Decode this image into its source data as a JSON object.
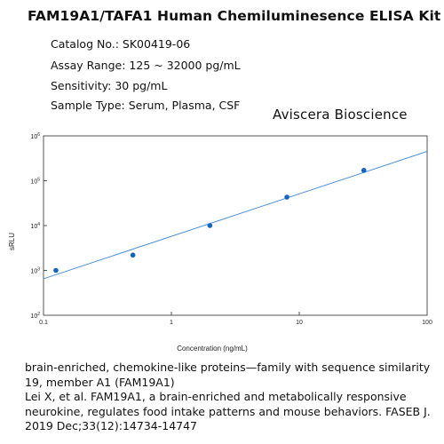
{
  "header": {
    "title": "FAM19A1/TAFA1 Human Chemiluminesence ELISA Kit",
    "catalog": "Catalog No.: SK00419-06",
    "assay_range": "Assay Range:  125 ~ 32000 pg/mL",
    "sensitivity": "Sensitivity: 30 pg/mL",
    "sample_type": "Sample Type: Serum, Plasma, CSF",
    "company": "Aviscera Bioscience"
  },
  "caption": {
    "line1": "brain-enriched, chemokine-like proteins—family with sequence similarity 19, member A1 (FAM19A1)",
    "line2": "Lei X, et al. FAM19A1, a brain-enriched and metabolically responsive neurokine, regulates food intake patterns and mouse behaviors. FASEB J. 2019 Dec;33(12):14734-14747"
  },
  "colors": {
    "series": "#1565c0",
    "fit_line": "#4a90d9"
  },
  "chart_data": {
    "type": "scatter",
    "xlabel": "Concentration (ng/mL)",
    "ylabel": "sRLU",
    "x_scale": "log",
    "y_scale": "log",
    "xlim": [
      0.1,
      100
    ],
    "ylim": [
      100,
      1000000
    ],
    "x_ticks": [
      {
        "value": 0.1,
        "label": "0.1"
      },
      {
        "value": 1,
        "label": "1"
      },
      {
        "value": 10,
        "label": "10"
      },
      {
        "value": 100,
        "label": "100"
      }
    ],
    "y_ticks": [
      {
        "value": 100,
        "base": "10",
        "exp": "2"
      },
      {
        "value": 1000,
        "base": "10",
        "exp": "3"
      },
      {
        "value": 10000,
        "base": "10",
        "exp": "4"
      },
      {
        "value": 100000,
        "base": "10",
        "exp": "5"
      },
      {
        "value": 1000000,
        "base": "10",
        "exp": "6"
      }
    ],
    "grid": false,
    "points": [
      {
        "x": 0.125,
        "y": 1000
      },
      {
        "x": 0.5,
        "y": 2200
      },
      {
        "x": 2,
        "y": 10000
      },
      {
        "x": 8,
        "y": 43000
      },
      {
        "x": 32,
        "y": 170000
      }
    ],
    "fit_line": {
      "x_start": 0.1,
      "y_start": 650,
      "x_end": 100,
      "y_end": 450000
    }
  }
}
